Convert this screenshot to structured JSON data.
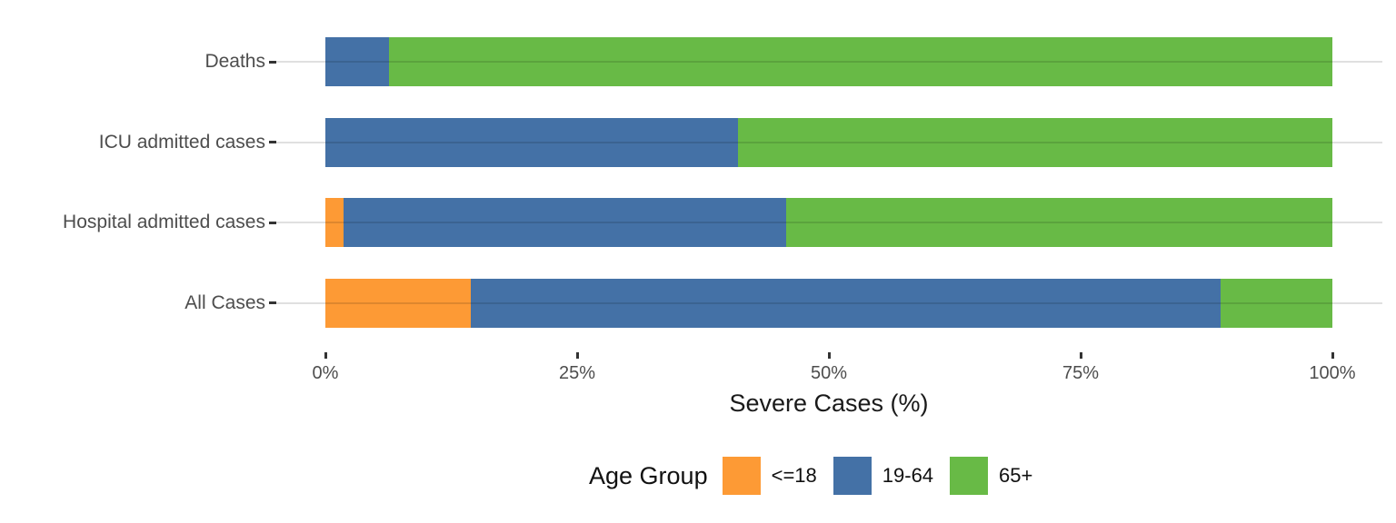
{
  "chart_data": {
    "type": "bar",
    "orientation": "horizontal",
    "stacked": true,
    "stack_unit": "percent",
    "title": "",
    "xlabel": "Severe Cases (%)",
    "ylabel": "",
    "xlim": [
      0,
      100
    ],
    "x_tick_values": [
      0,
      25,
      50,
      75,
      100
    ],
    "x_tick_labels": [
      "0%",
      "25%",
      "50%",
      "75%",
      "100%"
    ],
    "categories": [
      "Deaths",
      "ICU admitted cases",
      "Hospital admitted cases",
      "All Cases"
    ],
    "series": [
      {
        "name": "<=18",
        "color": "#FD9A35",
        "values": [
          0,
          0,
          1.8,
          14.4
        ]
      },
      {
        "name": "19-64",
        "color": "#4471A6",
        "values": [
          6.3,
          41,
          44.0,
          74.5
        ]
      },
      {
        "name": "65+",
        "color": "#68BA46",
        "values": [
          93.7,
          59,
          54.2,
          11.1
        ]
      }
    ],
    "legend": {
      "title": "Age Group",
      "position": "bottom"
    },
    "grid": "horizontal-major-only",
    "layout_hint": "rows top-to-bottom: Deaths, ICU admitted cases, Hospital admitted cases, All Cases; each row stacks left-to-right <=18, 19-64, 65+"
  },
  "colors": {
    "background": "#FFFFFF",
    "axis_text": "#4D4D4D",
    "axis_title": "#1A1A1A",
    "tick_mark": "#333333",
    "grid_overlay": "rgba(0,0,0,0.12)"
  }
}
